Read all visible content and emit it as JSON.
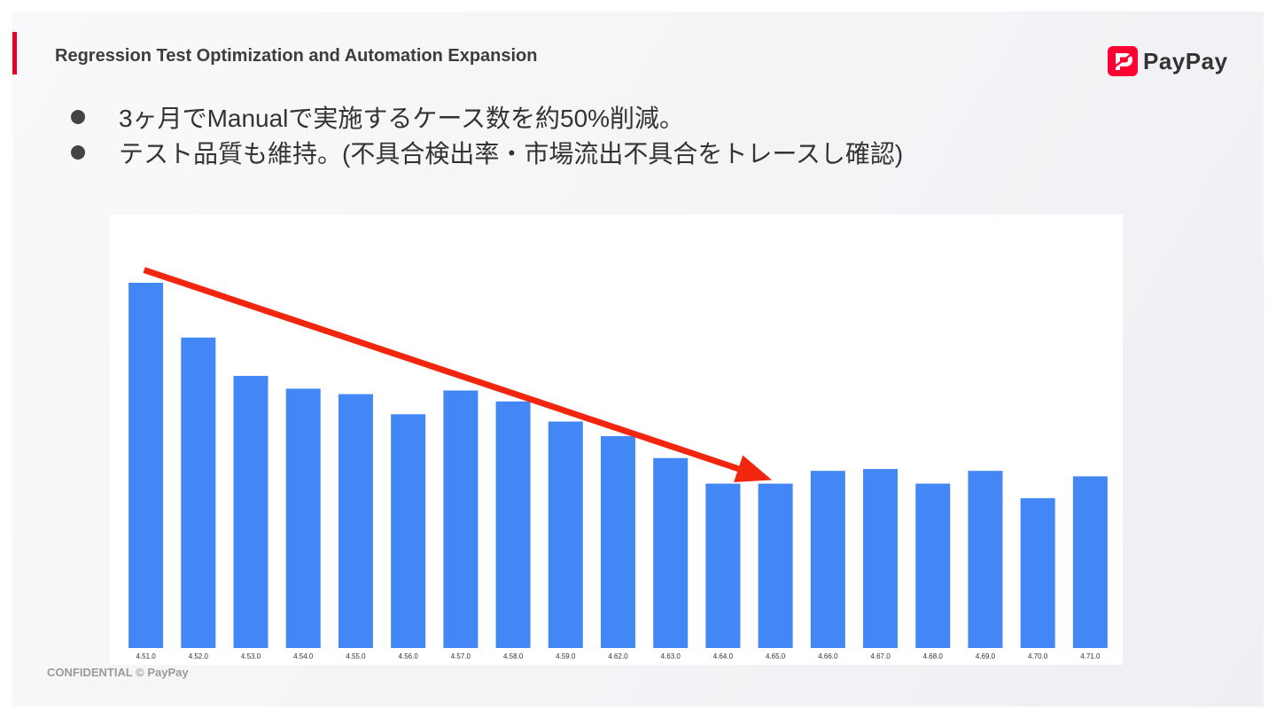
{
  "header": {
    "title": "Regression Test Optimization and Automation Expansion",
    "logo_text": "PayPay",
    "logo_icon": "paypay-logo-icon",
    "brand_color": "#ff0033"
  },
  "bullets": [
    "3ヶ月でManualで実施するケース数を約50%削減。",
    "テスト品質も維持。(不具合検出率・市場流出不具合をトレースし確認)"
  ],
  "chart_data": {
    "type": "bar",
    "categories": [
      "4.51.0",
      "4.52.0",
      "4.53.0",
      "4.54.0",
      "4.55.0",
      "4.56.0",
      "4.57.0",
      "4.58.0",
      "4.59.0",
      "4.62.0",
      "4.63.0",
      "4.64.0",
      "4.65.0",
      "4.66.0",
      "4.67.0",
      "4.68.0",
      "4.69.0",
      "4.70.0",
      "4.71.0"
    ],
    "values": [
      100,
      85,
      74.5,
      71,
      69.5,
      64,
      70.5,
      67.5,
      62,
      58,
      52,
      45,
      45,
      48.5,
      49,
      45,
      48.5,
      41,
      47
    ],
    "ylim": [
      0,
      100
    ],
    "bar_color": "#4287f5",
    "annotation": {
      "type": "trend-arrow",
      "from_category": "4.51.0",
      "from_value": 103.5,
      "to_category": "4.65.0",
      "to_value": 46,
      "color": "#f2260f"
    },
    "grid": false,
    "legend": "none"
  },
  "footer": {
    "confidential": "CONFIDENTIAL © PayPay"
  }
}
